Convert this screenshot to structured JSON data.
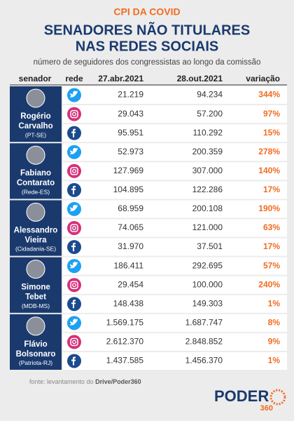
{
  "header": {
    "kicker": "CPI DA COVID",
    "title": [
      "SENADORES NÃO TITULARES",
      "NAS REDES SOCIAIS"
    ],
    "subtitle": "número de seguidores dos congressistas ao longo da comissão"
  },
  "table": {
    "columns": [
      "senador",
      "rede",
      "27.abr.2021",
      "28.out.2021",
      "variação"
    ],
    "senators": [
      {
        "name": [
          "Rogério",
          "Carvalho"
        ],
        "party": "(PT-SE)",
        "rows": [
          [
            "21.219",
            "94.234",
            "344%"
          ],
          [
            "29.043",
            "57.200",
            "97%"
          ],
          [
            "95.951",
            "110.292",
            "15%"
          ]
        ]
      },
      {
        "name": [
          "Fabiano",
          "Contarato"
        ],
        "party": "(Rede-ES)",
        "rows": [
          [
            "52.973",
            "200.359",
            "278%"
          ],
          [
            "127.969",
            "307.000",
            "140%"
          ],
          [
            "104.895",
            "122.286",
            "17%"
          ]
        ]
      },
      {
        "name": [
          "Alessandro",
          "Vieira"
        ],
        "party": "(Cidadania-SE)",
        "rows": [
          [
            "68.959",
            "200.108",
            "190%"
          ],
          [
            "74.065",
            "121.000",
            "63%"
          ],
          [
            "31.970",
            "37.501",
            "17%"
          ]
        ]
      },
      {
        "name": [
          "Simone",
          "Tebet"
        ],
        "party": "(MDB-MS)",
        "rows": [
          [
            "186.411",
            "292.695",
            "57%"
          ],
          [
            "29.454",
            "100.000",
            "240%"
          ],
          [
            "148.438",
            "149.303",
            "1%"
          ]
        ]
      },
      {
        "name": [
          "Flávio",
          "Bolsonaro"
        ],
        "party": "(Patriota-RJ)",
        "rows": [
          [
            "1.569.175",
            "1.687.747",
            "8%"
          ],
          [
            "2.612.370",
            "2.848.852",
            "9%"
          ],
          [
            "1.437.585",
            "1.456.370",
            "1%"
          ]
        ]
      }
    ]
  },
  "footer": {
    "source": "fonte: levantamento do ",
    "source_bold": "Drive/Poder360",
    "logo": "PODER",
    "logo_sub": "360"
  }
}
